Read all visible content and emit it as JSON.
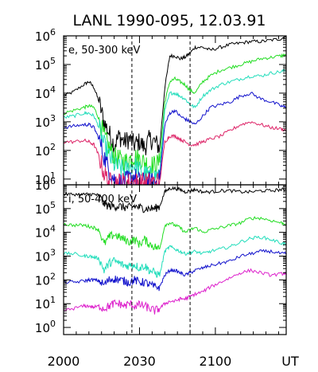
{
  "title": "LANL 1990-095, 12.03.91",
  "x_axis": {
    "ticks": [
      {
        "value": 0,
        "label": "2000"
      },
      {
        "value": 30,
        "label": "2030"
      },
      {
        "value": 60,
        "label": "2100"
      }
    ],
    "unit_label": "UT",
    "range": [
      0,
      88
    ]
  },
  "markers": {
    "dashed_vertical_lines_at": [
      27,
      50
    ]
  },
  "chart_data": [
    {
      "type": "line",
      "panel": "electrons",
      "annotation": "e, 50-300 keV",
      "yscale": "log",
      "ylim_log10": [
        0.8,
        6.0
      ],
      "y_ticks": [
        {
          "base": "10",
          "exp": "1",
          "value_log10": 1
        },
        {
          "base": "10",
          "exp": "2",
          "value_log10": 2
        },
        {
          "base": "10",
          "exp": "3",
          "value_log10": 3
        },
        {
          "base": "10",
          "exp": "4",
          "value_log10": 4
        },
        {
          "base": "10",
          "exp": "5",
          "value_log10": 5
        },
        {
          "base": "10",
          "exp": "6",
          "value_log10": 6
        }
      ],
      "series": [
        {
          "color": "#000000",
          "x": [
            0,
            4,
            8,
            10,
            12,
            14,
            16,
            18,
            20,
            22,
            24,
            26,
            28,
            30,
            32,
            34,
            36,
            38,
            40,
            42,
            44,
            46,
            48,
            50,
            52,
            55,
            58,
            62,
            66,
            70,
            74,
            78,
            82,
            86,
            88
          ],
          "log10_flux": [
            3.9,
            4.05,
            4.3,
            4.4,
            4.2,
            3.7,
            3.0,
            2.6,
            2.2,
            2.5,
            2.3,
            2.4,
            2.2,
            2.3,
            2.1,
            2.4,
            2.3,
            2.1,
            4.2,
            5.3,
            5.3,
            5.2,
            5.25,
            5.4,
            5.6,
            5.6,
            5.5,
            5.6,
            5.7,
            5.75,
            5.8,
            5.8,
            5.85,
            5.9,
            6.0
          ]
        },
        {
          "color": "#22dd22",
          "x": [
            0,
            4,
            8,
            10,
            12,
            14,
            16,
            18,
            20,
            22,
            24,
            26,
            28,
            30,
            32,
            34,
            36,
            38,
            40,
            42,
            44,
            46,
            48,
            50,
            52,
            55,
            58,
            62,
            66,
            70,
            74,
            78,
            82,
            86,
            88
          ],
          "log10_flux": [
            3.3,
            3.4,
            3.5,
            3.55,
            3.5,
            3.1,
            2.5,
            2.1,
            1.8,
            1.7,
            1.6,
            1.7,
            1.8,
            1.7,
            1.6,
            1.5,
            1.5,
            1.6,
            3.7,
            4.4,
            4.5,
            4.4,
            4.3,
            4.1,
            4.0,
            4.4,
            4.6,
            4.8,
            4.9,
            5.0,
            5.1,
            5.2,
            5.25,
            5.3,
            5.35
          ]
        },
        {
          "color": "#22ddbb",
          "x": [
            0,
            4,
            8,
            10,
            12,
            14,
            16,
            18,
            20,
            22,
            24,
            26,
            28,
            30,
            32,
            34,
            36,
            38,
            40,
            42,
            44,
            46,
            48,
            50,
            52,
            55,
            58,
            62,
            66,
            70,
            74,
            78,
            82,
            86,
            88
          ],
          "log10_flux": [
            3.15,
            3.2,
            3.3,
            3.3,
            3.2,
            2.8,
            2.2,
            1.8,
            1.5,
            1.4,
            1.3,
            1.4,
            1.5,
            1.3,
            1.2,
            1.1,
            1.1,
            1.2,
            3.4,
            4.0,
            4.0,
            3.9,
            3.8,
            3.6,
            3.5,
            3.9,
            4.1,
            4.3,
            4.4,
            4.5,
            4.6,
            4.6,
            4.7,
            4.75,
            4.8
          ]
        },
        {
          "color": "#1111cc",
          "x": [
            0,
            4,
            8,
            10,
            12,
            14,
            16,
            18,
            20,
            22,
            24,
            26,
            28,
            30,
            32,
            34,
            36,
            38,
            40,
            42,
            44,
            46,
            48,
            50,
            52,
            55,
            58,
            62,
            66,
            70,
            74,
            78,
            82,
            86,
            88
          ],
          "log10_flux": [
            2.8,
            2.85,
            2.9,
            2.9,
            2.8,
            2.4,
            1.8,
            1.3,
            1.0,
            0.9,
            0.9,
            1.0,
            1.1,
            0.9,
            0.9,
            0.9,
            0.9,
            1.0,
            2.9,
            3.3,
            3.4,
            3.2,
            3.1,
            3.0,
            2.9,
            3.2,
            3.5,
            3.6,
            3.7,
            3.9,
            4.0,
            3.8,
            3.7,
            3.55,
            3.5
          ]
        },
        {
          "color": "#dd2266",
          "x": [
            0,
            4,
            8,
            10,
            12,
            14,
            16,
            18,
            20,
            22,
            24,
            26,
            28,
            30,
            32,
            34,
            36,
            38,
            40,
            42,
            44,
            46,
            48,
            50,
            52,
            55,
            58,
            62,
            66,
            70,
            74,
            78,
            82,
            86,
            88
          ],
          "log10_flux": [
            2.3,
            2.3,
            2.35,
            2.3,
            2.2,
            1.8,
            1.2,
            0.9,
            0.9,
            0.9,
            0.9,
            0.9,
            0.9,
            0.9,
            0.9,
            0.9,
            0.9,
            0.9,
            2.3,
            2.5,
            2.5,
            2.4,
            2.3,
            2.2,
            2.2,
            2.3,
            2.4,
            2.5,
            2.7,
            2.9,
            3.0,
            2.9,
            2.8,
            2.75,
            2.7
          ]
        }
      ]
    },
    {
      "type": "line",
      "panel": "ions",
      "annotation": "i, 50-400 keV",
      "yscale": "log",
      "ylim_log10": [
        -0.3,
        6.0
      ],
      "y_ticks": [
        {
          "base": "10",
          "exp": "0",
          "value_log10": 0
        },
        {
          "base": "10",
          "exp": "1",
          "value_log10": 1
        },
        {
          "base": "10",
          "exp": "2",
          "value_log10": 2
        },
        {
          "base": "10",
          "exp": "3",
          "value_log10": 3
        },
        {
          "base": "10",
          "exp": "4",
          "value_log10": 4
        },
        {
          "base": "10",
          "exp": "5",
          "value_log10": 5
        },
        {
          "base": "10",
          "exp": "6",
          "value_log10": 6
        }
      ],
      "series": [
        {
          "color": "#000000",
          "x": [
            0,
            4,
            8,
            10,
            12,
            14,
            16,
            18,
            20,
            22,
            24,
            26,
            28,
            30,
            32,
            34,
            36,
            38,
            40,
            42,
            44,
            46,
            48,
            50,
            52,
            55,
            58,
            62,
            66,
            70,
            74,
            78,
            82,
            86,
            88
          ],
          "log10_flux": [
            5.6,
            5.6,
            5.6,
            5.6,
            5.6,
            5.55,
            5.2,
            5.1,
            5.1,
            5.1,
            5.05,
            5.05,
            5.1,
            5.05,
            5.0,
            5.0,
            5.0,
            5.1,
            5.7,
            5.85,
            5.85,
            5.8,
            5.7,
            5.75,
            5.8,
            5.7,
            5.7,
            5.75,
            5.75,
            5.7,
            5.7,
            5.75,
            5.75,
            5.8,
            5.8
          ]
        },
        {
          "color": "#22dd22",
          "x": [
            0,
            4,
            8,
            10,
            12,
            14,
            16,
            18,
            20,
            22,
            24,
            26,
            28,
            30,
            32,
            34,
            36,
            38,
            40,
            42,
            44,
            46,
            48,
            50,
            52,
            55,
            58,
            62,
            66,
            70,
            74,
            78,
            82,
            86,
            88
          ],
          "log10_flux": [
            4.35,
            4.3,
            4.3,
            4.25,
            4.2,
            4.1,
            3.5,
            3.8,
            3.9,
            3.8,
            3.7,
            3.6,
            3.7,
            3.5,
            3.7,
            3.5,
            3.4,
            3.3,
            4.3,
            4.4,
            4.3,
            4.2,
            4.0,
            4.1,
            4.2,
            4.0,
            4.1,
            4.2,
            4.3,
            4.4,
            4.6,
            4.6,
            4.5,
            4.4,
            4.35
          ]
        },
        {
          "color": "#22ddbb",
          "x": [
            0,
            4,
            8,
            10,
            12,
            14,
            16,
            18,
            20,
            22,
            24,
            26,
            28,
            30,
            32,
            34,
            36,
            38,
            40,
            42,
            44,
            46,
            48,
            50,
            52,
            55,
            58,
            62,
            66,
            70,
            74,
            78,
            82,
            86,
            88
          ],
          "log10_flux": [
            3.1,
            3.1,
            3.0,
            3.0,
            2.95,
            2.9,
            2.4,
            2.7,
            2.8,
            2.7,
            2.6,
            2.6,
            2.65,
            2.5,
            2.6,
            2.4,
            2.3,
            2.2,
            3.2,
            3.4,
            3.3,
            3.2,
            3.1,
            3.15,
            3.2,
            3.1,
            3.2,
            3.3,
            3.4,
            3.6,
            3.75,
            3.8,
            3.7,
            3.55,
            3.5
          ]
        },
        {
          "color": "#1111cc",
          "x": [
            0,
            4,
            8,
            10,
            12,
            14,
            16,
            18,
            20,
            22,
            24,
            26,
            28,
            30,
            32,
            34,
            36,
            38,
            40,
            42,
            44,
            46,
            48,
            50,
            52,
            55,
            58,
            62,
            66,
            70,
            74,
            78,
            82,
            86,
            88
          ],
          "log10_flux": [
            1.9,
            1.9,
            1.95,
            2.0,
            2.0,
            1.95,
            1.8,
            2.0,
            2.05,
            2.0,
            1.95,
            1.9,
            2.0,
            1.9,
            1.9,
            1.8,
            1.7,
            1.7,
            2.2,
            2.4,
            2.4,
            2.3,
            2.2,
            2.3,
            2.4,
            2.5,
            2.6,
            2.7,
            2.8,
            3.0,
            3.1,
            3.2,
            3.2,
            3.1,
            3.1
          ]
        },
        {
          "color": "#dd22cc",
          "x": [
            0,
            4,
            8,
            10,
            12,
            14,
            16,
            18,
            20,
            22,
            24,
            26,
            28,
            30,
            32,
            34,
            36,
            38,
            40,
            42,
            44,
            46,
            48,
            50,
            52,
            55,
            58,
            62,
            66,
            70,
            74,
            78,
            82,
            86,
            88
          ],
          "log10_flux": [
            0.7,
            0.8,
            0.9,
            0.9,
            0.85,
            0.9,
            0.8,
            0.9,
            1.0,
            1.0,
            0.9,
            1.0,
            0.9,
            0.95,
            0.9,
            0.8,
            0.7,
            0.8,
            1.0,
            1.1,
            1.1,
            1.2,
            1.2,
            1.3,
            1.4,
            1.5,
            1.7,
            1.9,
            2.1,
            2.3,
            2.4,
            2.3,
            2.2,
            2.25,
            2.3
          ]
        }
      ]
    }
  ]
}
